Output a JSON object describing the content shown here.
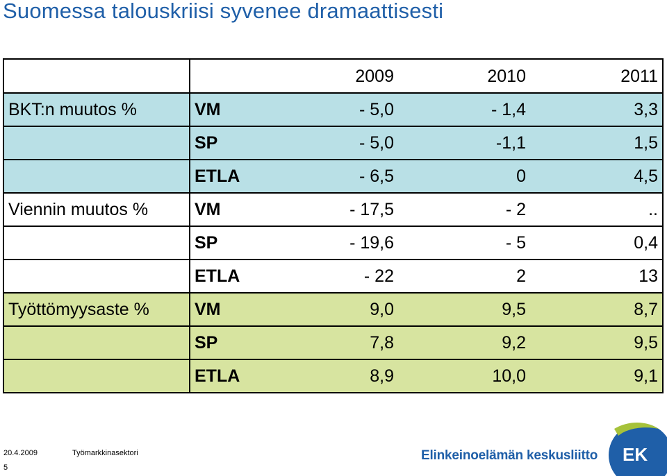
{
  "title": "Suomessa talouskriisi syvenee dramaattisesti",
  "table": {
    "years": [
      "2009",
      "2010",
      "2011"
    ],
    "rows": [
      {
        "category": "BKT:n muutos %",
        "source": "VM",
        "values": [
          "- 5,0",
          "- 1,4",
          "3,3"
        ]
      },
      {
        "category": "",
        "source": "SP",
        "values": [
          "- 5,0",
          "-1,1",
          "1,5"
        ]
      },
      {
        "category": "",
        "source": "ETLA",
        "values": [
          "- 6,5",
          "0",
          "4,5"
        ]
      },
      {
        "category": "Viennin muutos %",
        "source": "VM",
        "values": [
          "- 17,5",
          "- 2",
          ".."
        ]
      },
      {
        "category": "",
        "source": "SP",
        "values": [
          "- 19,6",
          "- 5",
          "0,4"
        ]
      },
      {
        "category": "",
        "source": "ETLA",
        "values": [
          "- 22",
          "2",
          "13"
        ]
      },
      {
        "category": "Työttömyysaste %",
        "source": "VM",
        "values": [
          "9,0",
          "9,5",
          "8,7"
        ]
      },
      {
        "category": "",
        "source": "SP",
        "values": [
          "7,8",
          "9,2",
          "9,5"
        ]
      },
      {
        "category": "",
        "source": "ETLA",
        "values": [
          "8,9",
          "10,0",
          "9,1"
        ]
      }
    ]
  },
  "footer": {
    "date": "20.4.2009",
    "department": "Työmarkkinasektori",
    "page_number": "5",
    "organization": "Elinkeinoelämän keskusliitto",
    "logo_text": "EK"
  },
  "colors": {
    "title": "#1f5fa8",
    "row_blue": "#b9e0e6",
    "row_green": "#d7e4a0",
    "logo_circle": "#1f5fa8",
    "logo_accent": "#a6c23a"
  }
}
